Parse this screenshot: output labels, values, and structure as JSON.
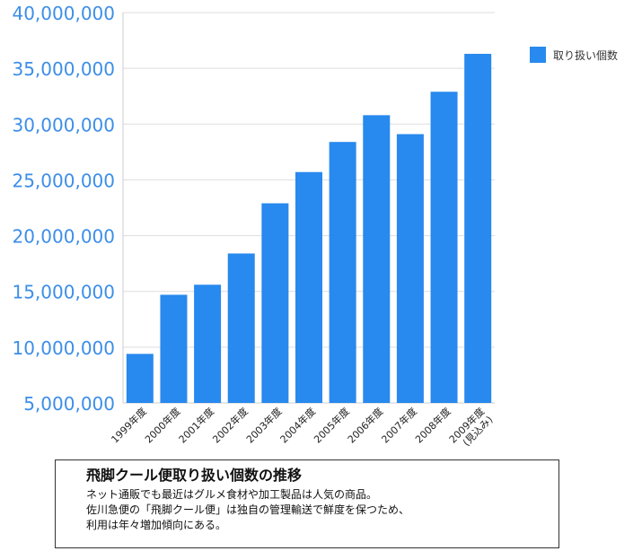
{
  "colors": {
    "bar": "#2889ee",
    "axis_text": "#3c8ee8",
    "grid": "#dddddd"
  },
  "chart_data": {
    "type": "bar",
    "categories": [
      "1999年度",
      "2000年度",
      "2001年度",
      "2002年度",
      "2003年度",
      "2004年度",
      "2005年度",
      "2006年度",
      "2007年度",
      "2008年度",
      "2009年度\n(見込み)"
    ],
    "series": [
      {
        "name": "取り扱い個数",
        "values": [
          9400000,
          14700000,
          15600000,
          18400000,
          22900000,
          25700000,
          28400000,
          30800000,
          29100000,
          32900000,
          36300000
        ]
      }
    ],
    "ylim": [
      5000000,
      40000000
    ],
    "yticks": [
      "5,000,000",
      "10,000,000",
      "15,000,000",
      "20,000,000",
      "25,000,000",
      "30,000,000",
      "35,000,000",
      "40,000,000"
    ],
    "grid": true,
    "legend": "top-right"
  },
  "legend": {
    "label": "取り扱い個数"
  },
  "caption": {
    "title": "飛脚クール便取り扱い個数の推移",
    "lines": [
      "ネット通販でも最近はグルメ食材や加工製品は人気の商品。",
      "佐川急便の「飛脚クール便」は独自の管理輸送で鮮度を保つため、",
      "利用は年々増加傾向にある。"
    ]
  }
}
